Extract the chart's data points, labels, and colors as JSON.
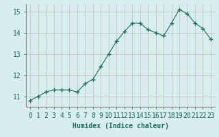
{
  "x": [
    0,
    1,
    2,
    3,
    4,
    5,
    6,
    7,
    8,
    9,
    10,
    11,
    12,
    13,
    14,
    15,
    16,
    17,
    18,
    19,
    20,
    21,
    22,
    23
  ],
  "y": [
    10.8,
    11.0,
    11.2,
    11.3,
    11.3,
    11.3,
    11.2,
    11.6,
    11.8,
    12.4,
    13.0,
    13.6,
    14.05,
    14.45,
    14.45,
    14.15,
    14.0,
    13.85,
    14.45,
    15.1,
    14.9,
    14.45,
    14.2,
    13.7
  ],
  "line_color": "#1a6b5a",
  "marker": "+",
  "marker_size": 4,
  "linewidth": 0.8,
  "xlabel": "Humidex (Indice chaleur)",
  "xlim": [
    -0.5,
    23.5
  ],
  "ylim": [
    10.5,
    15.35
  ],
  "yticks": [
    11,
    12,
    13,
    14,
    15
  ],
  "xticks": [
    0,
    1,
    2,
    3,
    4,
    5,
    6,
    7,
    8,
    9,
    10,
    11,
    12,
    13,
    14,
    15,
    16,
    17,
    18,
    19,
    20,
    21,
    22,
    23
  ],
  "grid_color": "#c8b8b8",
  "bg_color": "#d8eeee",
  "tick_label_color": "#1a6b5a",
  "xlabel_color": "#1a6b5a",
  "xlabel_fontsize": 7,
  "tick_fontsize": 7,
  "spine_color": "#888888",
  "markeredgewidth": 1.0
}
